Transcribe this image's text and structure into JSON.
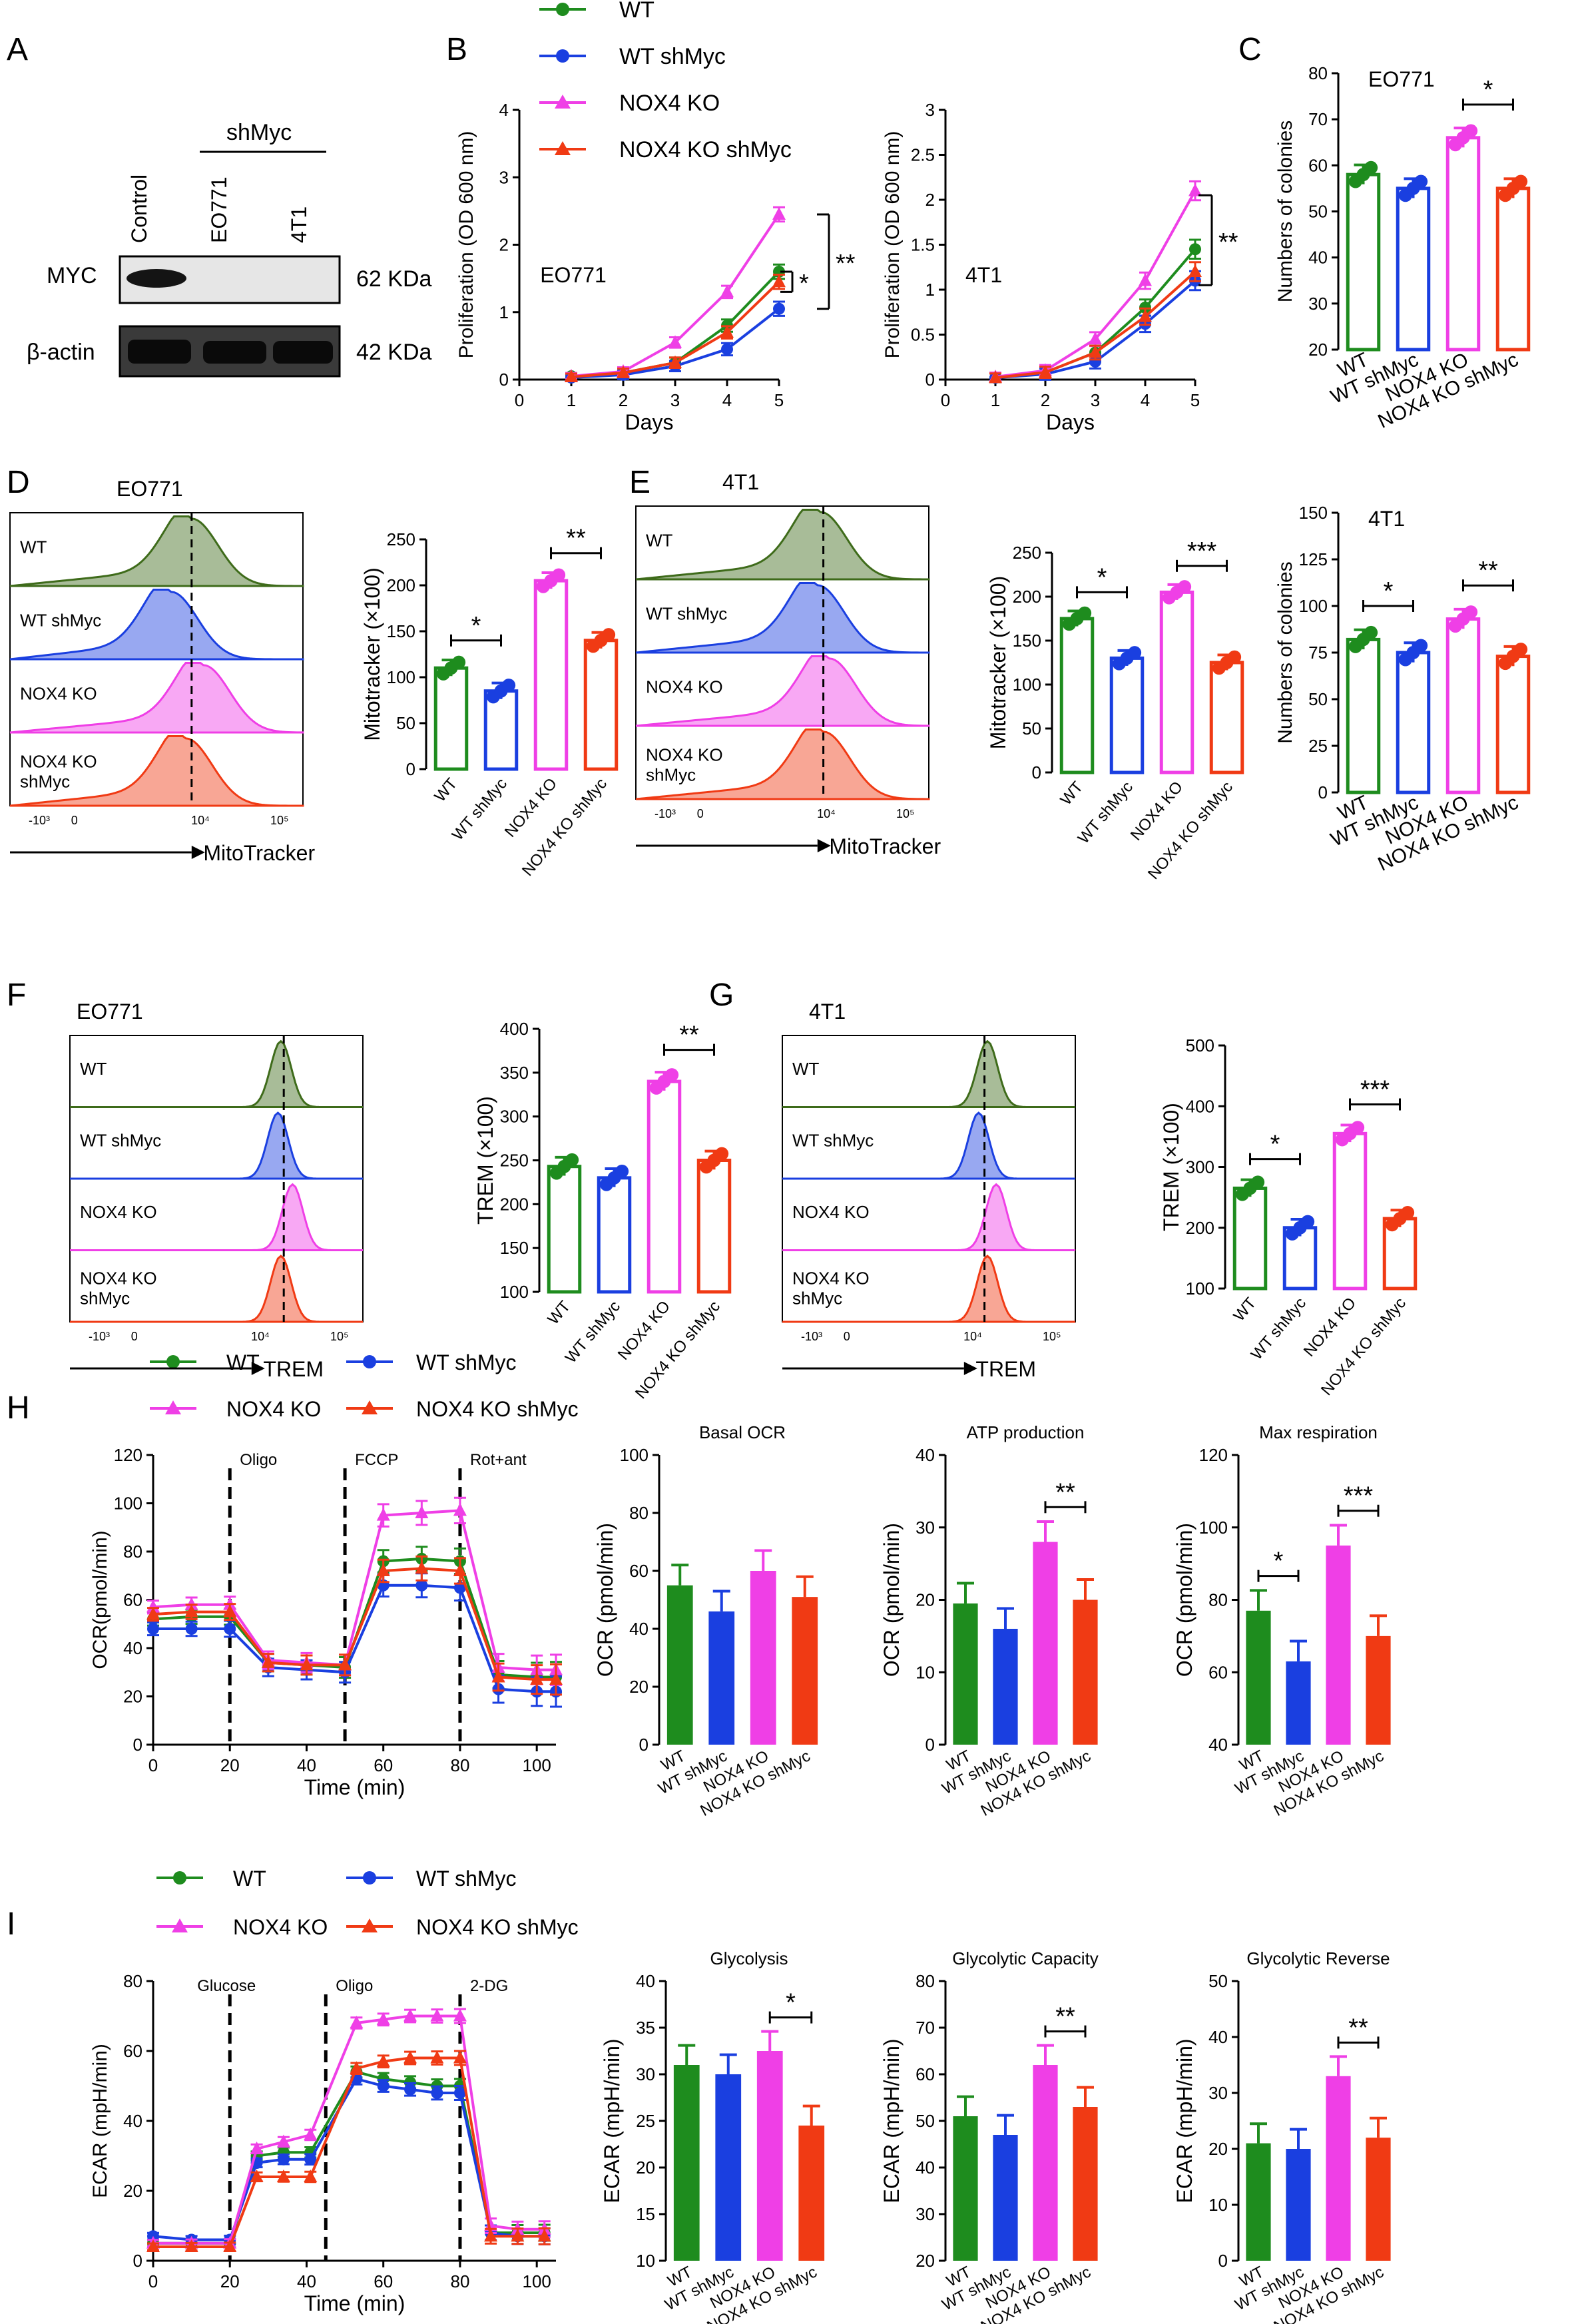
{
  "colors": {
    "wt": "#1e8c1e",
    "wtsh": "#1a3fe0",
    "ko": "#ef3fe6",
    "kosh": "#f03a14",
    "wtdark": "#3e6b1a",
    "dark": "#000000"
  },
  "panel_labels": [
    "A",
    "B",
    "C",
    "D",
    "E",
    "F",
    "G",
    "H",
    "I"
  ],
  "legend_b": [
    "WT",
    "WT shMyc",
    "NOX4 KO",
    "NOX4 KO shMyc"
  ],
  "legend_h": [
    "WT",
    "WT shMyc",
    "NOX4 KO",
    "NOX4 KO shMyc"
  ],
  "legend_i": [
    "WT",
    "WT shMyc",
    "NOX4 KO",
    "NOX4 KO shMyc"
  ],
  "groups": [
    "WT",
    "WT shMyc",
    "NOX4 KO",
    "NOX4 KO shMyc"
  ],
  "western": {
    "shmyc_label": "shMyc",
    "lanes": [
      "Control",
      "EO771",
      "4T1"
    ],
    "rows": [
      "MYC",
      "β-actin"
    ],
    "sizes": [
      "62 KDa",
      "42 KDa"
    ]
  },
  "flow": {
    "xlabel_mito": "MitoTracker",
    "xlabel_trem": "TREM",
    "tick_labels": [
      "-10³",
      "0",
      "10⁴",
      "10⁵"
    ],
    "rows": [
      "WT",
      "WT shMyc",
      "NOX4 KO",
      "NOX4 KO",
      "shMyc"
    ],
    "titles": [
      "EO771",
      "4T1",
      "EO771",
      "4T1"
    ]
  },
  "chart_data": [
    {
      "id": "B1",
      "type": "line",
      "subtitle": "EO771",
      "xlabel": "Days",
      "ylabel": "Proliferation (OD 600 nm)",
      "xlim": [
        0,
        5
      ],
      "ylim": [
        0,
        4
      ],
      "x": [
        1,
        2,
        3,
        4,
        5
      ],
      "series": [
        {
          "name": "WT",
          "values": [
            0.05,
            0.1,
            0.25,
            0.8,
            1.6
          ]
        },
        {
          "name": "WT shMyc",
          "values": [
            0.03,
            0.07,
            0.2,
            0.45,
            1.05
          ]
        },
        {
          "name": "NOX4 KO",
          "values": [
            0.05,
            0.12,
            0.55,
            1.3,
            2.45
          ]
        },
        {
          "name": "NOX4 KO shMyc",
          "values": [
            0.04,
            0.1,
            0.25,
            0.7,
            1.45
          ]
        }
      ],
      "sig": [
        "*",
        "**"
      ]
    },
    {
      "id": "B2",
      "type": "line",
      "subtitle": "4T1",
      "xlabel": "Days",
      "ylabel": "Proliferation (OD 600 nm)",
      "xlim": [
        0,
        5
      ],
      "ylim": [
        0,
        3
      ],
      "x": [
        1,
        2,
        3,
        4,
        5
      ],
      "series": [
        {
          "name": "WT",
          "values": [
            0.02,
            0.08,
            0.3,
            0.8,
            1.45
          ]
        },
        {
          "name": "WT shMyc",
          "values": [
            0.02,
            0.06,
            0.2,
            0.62,
            1.1
          ]
        },
        {
          "name": "NOX4 KO",
          "values": [
            0.03,
            0.1,
            0.45,
            1.1,
            2.1
          ]
        },
        {
          "name": "NOX4 KO shMyc",
          "values": [
            0.02,
            0.08,
            0.3,
            0.7,
            1.2
          ]
        }
      ],
      "sig": [
        "**"
      ]
    },
    {
      "id": "C1",
      "type": "bar",
      "subtitle": "EO771",
      "ylabel": "Numbers of colonies",
      "ylim": [
        20,
        80
      ],
      "values": [
        58,
        55,
        66,
        55
      ],
      "sig": [
        {
          "a": 2,
          "b": 3,
          "t": "*"
        }
      ]
    },
    {
      "id": "C2",
      "type": "bar",
      "subtitle": "4T1",
      "ylabel": "Numbers of colonies",
      "ylim": [
        0,
        150
      ],
      "values": [
        82,
        75,
        93,
        73
      ],
      "sig": [
        {
          "a": 0,
          "b": 1,
          "t": "*"
        },
        {
          "a": 2,
          "b": 3,
          "t": "**"
        }
      ]
    },
    {
      "id": "D",
      "type": "bar",
      "ylabel": "Mitotracker (×100)",
      "ylim": [
        0,
        250
      ],
      "values": [
        110,
        85,
        205,
        140
      ],
      "sig": [
        {
          "a": 0,
          "b": 1,
          "t": "*"
        },
        {
          "a": 2,
          "b": 3,
          "t": "**"
        }
      ]
    },
    {
      "id": "E",
      "type": "bar",
      "ylabel": "Mitotracker (×100)",
      "ylim": [
        0,
        250
      ],
      "values": [
        175,
        130,
        205,
        125
      ],
      "sig": [
        {
          "a": 0,
          "b": 1,
          "t": "*"
        },
        {
          "a": 2,
          "b": 3,
          "t": "***"
        }
      ]
    },
    {
      "id": "F",
      "type": "bar",
      "ylabel": "TREM (×100)",
      "ylim": [
        100,
        400
      ],
      "values": [
        243,
        230,
        340,
        250
      ],
      "sig": [
        {
          "a": 2,
          "b": 3,
          "t": "**"
        }
      ]
    },
    {
      "id": "G",
      "type": "bar",
      "ylabel": "TREM (×100)",
      "ylim": [
        100,
        500
      ],
      "values": [
        265,
        200,
        355,
        215
      ],
      "sig": [
        {
          "a": 0,
          "b": 1,
          "t": "*"
        },
        {
          "a": 2,
          "b": 3,
          "t": "***"
        }
      ]
    },
    {
      "id": "H1",
      "type": "line",
      "xlabel": "Time (min)",
      "ylabel": "OCR(pmol/min)",
      "xlim": [
        0,
        105
      ],
      "ylim": [
        0,
        120
      ],
      "x": [
        0,
        10,
        20,
        30,
        40,
        50,
        60,
        70,
        80,
        90,
        100,
        105
      ],
      "events": [
        {
          "x": 20,
          "label": "Oligo"
        },
        {
          "x": 50,
          "label": "FCCP"
        },
        {
          "x": 80,
          "label": "Rot+ant"
        }
      ],
      "series": [
        {
          "name": "WT",
          "values": [
            52,
            53,
            53,
            34,
            33,
            32,
            76,
            77,
            76,
            29,
            28,
            28
          ]
        },
        {
          "name": "WT shMyc",
          "values": [
            48,
            48,
            48,
            32,
            31,
            30,
            66,
            66,
            65,
            23,
            22,
            22
          ]
        },
        {
          "name": "NOX4 KO",
          "values": [
            57,
            58,
            58,
            35,
            34,
            33,
            95,
            96,
            97,
            32,
            31,
            31
          ]
        },
        {
          "name": "NOX4 KO shMyc",
          "values": [
            54,
            55,
            55,
            34,
            33,
            33,
            72,
            73,
            72,
            28,
            27,
            27
          ]
        }
      ]
    },
    {
      "id": "H2",
      "type": "bar",
      "title": "Basal OCR",
      "ylabel": "OCR (pmol/min)",
      "ylim": [
        0,
        100
      ],
      "values": [
        55,
        46,
        60,
        51
      ],
      "sig": []
    },
    {
      "id": "H3",
      "type": "bar",
      "title": "ATP production",
      "ylabel": "OCR (pmol/min)",
      "ylim": [
        0,
        40
      ],
      "values": [
        19.5,
        16,
        28,
        20
      ],
      "sig": [
        {
          "a": 2,
          "b": 3,
          "t": "**"
        }
      ]
    },
    {
      "id": "H4",
      "type": "bar",
      "title": "Max respiration",
      "ylabel": "OCR (pmol/min)",
      "ylim": [
        40,
        120
      ],
      "values": [
        77,
        63,
        95,
        70
      ],
      "sig": [
        {
          "a": 0,
          "b": 1,
          "t": "*"
        },
        {
          "a": 2,
          "b": 3,
          "t": "***"
        }
      ]
    },
    {
      "id": "I1",
      "type": "line",
      "xlabel": "Time (min)",
      "ylabel": "ECAR (mpH/min)",
      "xlim": [
        0,
        105
      ],
      "ylim": [
        0,
        80
      ],
      "x": [
        0,
        10,
        20,
        27,
        34,
        41,
        53,
        60,
        67,
        74,
        80,
        88,
        95,
        102
      ],
      "events": [
        {
          "x": 20,
          "label": "Glucose"
        },
        {
          "x": 45,
          "label": "Oligo"
        },
        {
          "x": 80,
          "label": "2-DG"
        }
      ],
      "series": [
        {
          "name": "WT",
          "values": [
            5,
            5,
            5,
            30,
            31,
            31,
            54,
            52,
            51,
            50,
            50,
            8,
            8,
            8
          ]
        },
        {
          "name": "WT shMyc",
          "values": [
            7,
            6,
            6,
            28,
            29,
            29,
            52,
            50,
            49,
            48,
            48,
            8,
            7,
            7
          ]
        },
        {
          "name": "NOX4 KO",
          "values": [
            5,
            5,
            5,
            32,
            34,
            36,
            68,
            69,
            70,
            70,
            70,
            10,
            9,
            9
          ]
        },
        {
          "name": "NOX4 KO shMyc",
          "values": [
            4,
            4,
            4,
            24,
            24,
            24,
            55,
            57,
            58,
            58,
            58,
            7,
            7,
            7
          ]
        }
      ]
    },
    {
      "id": "I2",
      "type": "bar",
      "title": "Glycolysis",
      "ylabel": "ECAR (mpH/min)",
      "ylim": [
        10,
        40
      ],
      "values": [
        31,
        30,
        32.5,
        24.5
      ],
      "sig": [
        {
          "a": 2,
          "b": 3,
          "t": "*"
        }
      ]
    },
    {
      "id": "I3",
      "type": "bar",
      "title": "Glycolytic Capacity",
      "ylabel": "ECAR (mpH/min)",
      "ylim": [
        20,
        80
      ],
      "values": [
        51,
        47,
        62,
        53
      ],
      "sig": [
        {
          "a": 2,
          "b": 3,
          "t": "**"
        }
      ]
    },
    {
      "id": "I4",
      "type": "bar",
      "title": "Glycolytic  Reverse",
      "ylabel": "ECAR (mpH/min)",
      "ylim": [
        0,
        50
      ],
      "values": [
        21,
        20,
        33,
        22
      ],
      "sig": [
        {
          "a": 2,
          "b": 3,
          "t": "**"
        }
      ]
    }
  ]
}
